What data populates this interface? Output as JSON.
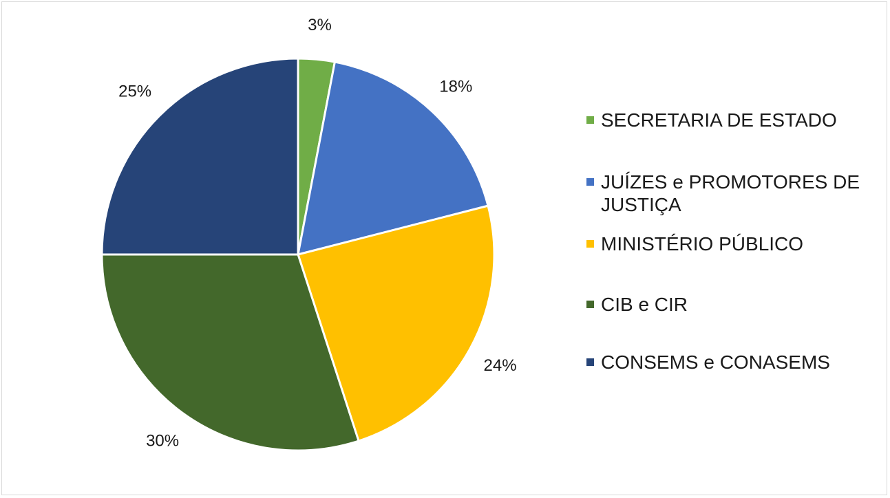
{
  "chart_data": {
    "type": "pie",
    "categories": [
      "SECRETARIA DE ESTADO",
      "JUÍZES e PROMOTORES DE JUSTIÇA",
      "MINISTÉRIO PÚBLICO",
      "CIB e CIR",
      "CONSEMS e CONASEMS"
    ],
    "values": [
      3,
      18,
      24,
      30,
      25
    ],
    "labels": [
      "3%",
      "18%",
      "24%",
      "30%",
      "25%"
    ],
    "colors": [
      "#70ad47",
      "#4472c4",
      "#ffc000",
      "#43682b",
      "#264478"
    ],
    "legend_position": "right",
    "start_angle": "12 o'clock",
    "direction": "clockwise"
  }
}
